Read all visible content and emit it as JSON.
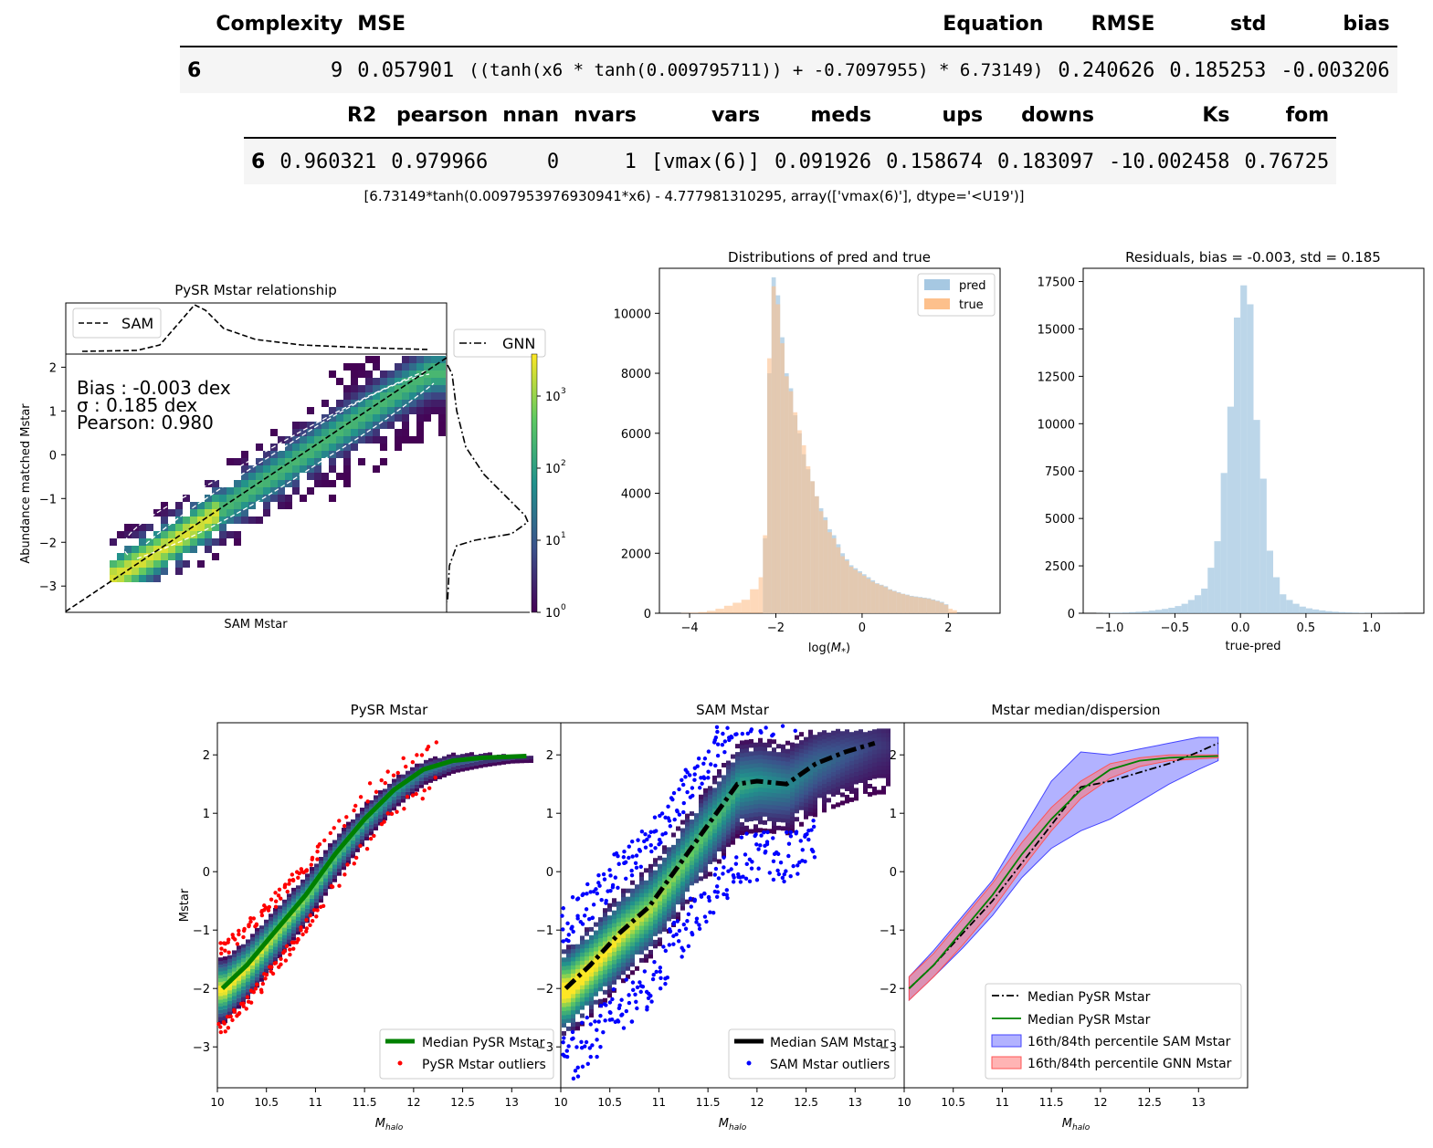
{
  "table1": {
    "headers": [
      "Complexity",
      "MSE",
      "Equation",
      "RMSE",
      "std",
      "bias"
    ],
    "row": {
      "index": "6",
      "values": [
        "9",
        "0.057901",
        "((tanh(x6 * tanh(0.009795711)) + -0.7097955) * 6.73149)",
        "0.240626",
        "0.185253",
        "-0.003206"
      ]
    }
  },
  "table2": {
    "headers": [
      "R2",
      "pearson",
      "nnan",
      "nvars",
      "vars",
      "meds",
      "ups",
      "downs",
      "Ks",
      "fom"
    ],
    "row": {
      "index": "6",
      "values": [
        "0.960321",
        "0.979966",
        "0",
        "1",
        "[vmax(6)]",
        "0.091926",
        "0.158674",
        "0.183097",
        "-10.002458",
        "0.76725"
      ]
    }
  },
  "result_line": "[6.73149*tanh(0.0097953976930941*x6) - 4.777981310295, array(['vmax(6)'], dtype='<U19')]",
  "colors": {
    "viridis_low": "#440154",
    "viridis_mid": "#21918c",
    "viridis_high": "#fde725",
    "pred": "#a6c8e2",
    "true": "#fdc08c",
    "residual": "#a6c8e2",
    "pysr_median": "#008000",
    "pysr_outlier": "#ff0000",
    "sam_outlier": "#0000ff",
    "sam_band": "#6666ff",
    "gnn_band": "#ff7777"
  },
  "chart_data": [
    {
      "type": "heatmap",
      "title": "PySR Mstar relationship",
      "xlabel": "SAM Mstar",
      "ylabel": "Abundance matched Mstar",
      "ylim": [
        -3.6,
        2.3
      ],
      "yticks": [
        "2",
        "1",
        "0",
        "−1",
        "−2",
        "−3"
      ],
      "annotations": [
        "Bias : -0.003 dex",
        "σ : 0.185 dex",
        "Pearson:  0.980"
      ],
      "marginal_top_legend": "SAM",
      "marginal_right_legend": "GNN",
      "colorbar": {
        "scale": "log",
        "ticks": [
          "10",
          "10",
          "10",
          "10"
        ],
        "exponents": [
          "0",
          "1",
          "2",
          "3"
        ],
        "range": [
          1,
          3000
        ]
      },
      "ridge_x": [
        -2.8,
        -2.5,
        -2,
        -1.5,
        -1,
        -0.5,
        0,
        0.5,
        1,
        1.5,
        2
      ],
      "ridge_y": [
        -2.7,
        -2.45,
        -2.0,
        -1.5,
        -1.0,
        -0.5,
        0.0,
        0.5,
        1.0,
        1.5,
        1.95
      ]
    },
    {
      "type": "bar",
      "title": "Distributions of pred and true",
      "xlabel": "log(M*)",
      "xlim": [
        -4.7,
        3.2
      ],
      "ylim": [
        0,
        11500
      ],
      "xticks": [
        -4,
        -2,
        0,
        2
      ],
      "yticks": [
        0,
        2000,
        4000,
        6000,
        8000,
        10000
      ],
      "bin_edges": [
        -4.2,
        -4.0,
        -3.8,
        -3.6,
        -3.4,
        -3.2,
        -3.0,
        -2.8,
        -2.6,
        -2.4,
        -2.3,
        -2.2,
        -2.1,
        -2.0,
        -1.9,
        -1.8,
        -1.7,
        -1.6,
        -1.5,
        -1.4,
        -1.3,
        -1.2,
        -1.1,
        -1.0,
        -0.9,
        -0.8,
        -0.7,
        -0.6,
        -0.5,
        -0.4,
        -0.3,
        -0.2,
        -0.1,
        0.0,
        0.1,
        0.2,
        0.3,
        0.4,
        0.5,
        0.6,
        0.7,
        0.8,
        0.9,
        1.0,
        1.1,
        1.2,
        1.3,
        1.4,
        1.5,
        1.6,
        1.7,
        1.8,
        1.9,
        2.0,
        2.1,
        2.2,
        2.4
      ],
      "series": [
        {
          "name": "pred",
          "values": [
            0,
            0,
            0,
            0,
            0,
            0,
            0,
            0,
            0,
            0,
            2500,
            8000,
            11200,
            10600,
            9200,
            8000,
            7500,
            6600,
            6000,
            5300,
            4800,
            4400,
            3900,
            3500,
            3200,
            2800,
            2600,
            2300,
            2000,
            1800,
            1600,
            1500,
            1400,
            1300,
            1200,
            1100,
            1000,
            950,
            900,
            800,
            750,
            700,
            650,
            620,
            580,
            560,
            540,
            520,
            500,
            460,
            420,
            380,
            300,
            0,
            0,
            0
          ]
        },
        {
          "name": "true",
          "values": [
            10,
            20,
            40,
            80,
            150,
            250,
            350,
            450,
            800,
            1200,
            2600,
            8500,
            10900,
            10300,
            9000,
            7900,
            7400,
            6700,
            6100,
            5600,
            4900,
            4400,
            3900,
            3400,
            3100,
            2700,
            2500,
            2200,
            1900,
            1750,
            1550,
            1450,
            1350,
            1250,
            1150,
            1050,
            980,
            930,
            870,
            780,
            730,
            680,
            640,
            600,
            560,
            540,
            520,
            500,
            480,
            440,
            400,
            350,
            280,
            150,
            100,
            0
          ]
        }
      ]
    },
    {
      "type": "bar",
      "title": "Residuals, bias = -0.003, std = 0.185",
      "xlabel": "true-pred",
      "xlim": [
        -1.2,
        1.4
      ],
      "ylim": [
        0,
        18200
      ],
      "xticks": [
        -1.0,
        -0.5,
        0.0,
        0.5,
        1.0
      ],
      "yticks": [
        0,
        2500,
        5000,
        7500,
        10000,
        12500,
        15000,
        17500
      ],
      "bin_edges": [
        -1.1,
        -1.05,
        -1.0,
        -0.95,
        -0.9,
        -0.85,
        -0.8,
        -0.75,
        -0.7,
        -0.65,
        -0.6,
        -0.55,
        -0.5,
        -0.45,
        -0.4,
        -0.35,
        -0.3,
        -0.25,
        -0.2,
        -0.15,
        -0.1,
        -0.05,
        0.0,
        0.05,
        0.1,
        0.15,
        0.2,
        0.25,
        0.3,
        0.35,
        0.4,
        0.45,
        0.5,
        0.55,
        0.6,
        0.65,
        0.7,
        0.75,
        0.8,
        0.85,
        0.9,
        0.95,
        1.0,
        1.05,
        1.1,
        1.15,
        1.2,
        1.25
      ],
      "values": [
        10,
        15,
        25,
        30,
        40,
        60,
        80,
        100,
        140,
        180,
        230,
        290,
        380,
        500,
        700,
        950,
        1300,
        2400,
        3800,
        7400,
        10900,
        15600,
        17300,
        16300,
        10200,
        7100,
        3300,
        1900,
        1000,
        700,
        500,
        350,
        260,
        200,
        150,
        110,
        80,
        60,
        45,
        35,
        25,
        20,
        15,
        12,
        10,
        8,
        5
      ]
    },
    {
      "type": "heatmap",
      "title": "PySR Mstar",
      "xlabel": "M_halo",
      "ylabel": "Mstar",
      "xlim": [
        10,
        13.5
      ],
      "ylim": [
        -3.7,
        2.55
      ],
      "xticks": [
        "10",
        "10.5",
        "11",
        "11.5",
        "12",
        "12.5",
        "13"
      ],
      "yticks": [
        2,
        1,
        0,
        -1,
        -2,
        -3
      ],
      "median_x": [
        10.05,
        10.3,
        10.6,
        10.9,
        11.2,
        11.5,
        11.8,
        12.1,
        12.4,
        12.7,
        13.0,
        13.15
      ],
      "median_y": [
        -2.0,
        -1.6,
        -1.0,
        -0.4,
        0.3,
        0.9,
        1.4,
        1.75,
        1.9,
        1.95,
        1.97,
        1.98
      ],
      "legend": [
        "Median PySR Mstar",
        "PySR Mstar outliers"
      ]
    },
    {
      "type": "heatmap",
      "title": "SAM Mstar",
      "xlabel": "M_halo",
      "xlim": [
        10,
        13.5
      ],
      "ylim": [
        -3.7,
        2.55
      ],
      "xticks": [
        "10",
        "10.5",
        "11",
        "11.5",
        "12",
        "12.5",
        "13"
      ],
      "yticks": [
        2,
        1,
        0,
        -1,
        -2,
        -3
      ],
      "median_x": [
        10.05,
        10.3,
        10.6,
        10.9,
        11.2,
        11.5,
        11.8,
        12.0,
        12.3,
        12.6,
        12.9,
        13.2
      ],
      "median_y": [
        -2.0,
        -1.6,
        -1.05,
        -0.6,
        0.1,
        0.8,
        1.5,
        1.55,
        1.5,
        1.85,
        2.05,
        2.2
      ],
      "legend": [
        "Median SAM Mstar",
        "SAM Mstar outliers"
      ]
    },
    {
      "type": "line",
      "title": "Mstar median/dispersion",
      "xlabel": "M_halo",
      "xlim": [
        10,
        13.5
      ],
      "ylim": [
        -3.7,
        2.55
      ],
      "xticks": [
        "10",
        "10.5",
        "11",
        "11.5",
        "12",
        "12.5",
        "13"
      ],
      "yticks": [
        2,
        1,
        0,
        -1,
        -2,
        -3
      ],
      "x": [
        10.05,
        10.3,
        10.6,
        10.9,
        11.2,
        11.5,
        11.8,
        12.1,
        12.4,
        12.7,
        13.0,
        13.2
      ],
      "series": [
        {
          "name": "Median PySR Mstar",
          "style": "dashdot",
          "values": [
            -2.0,
            -1.6,
            -1.05,
            -0.5,
            0.15,
            0.8,
            1.45,
            1.55,
            1.7,
            1.85,
            2.05,
            2.2
          ]
        },
        {
          "name": "Median PySR Mstar",
          "style": "solid",
          "values": [
            -2.0,
            -1.6,
            -1.0,
            -0.4,
            0.3,
            0.9,
            1.4,
            1.75,
            1.9,
            1.95,
            1.97,
            1.98
          ]
        },
        {
          "name": "16th/84th percentile SAM Mstar",
          "lower": [
            -2.2,
            -1.8,
            -1.3,
            -0.75,
            -0.1,
            0.4,
            0.7,
            0.9,
            1.2,
            1.5,
            1.75,
            1.9
          ],
          "upper": [
            -1.8,
            -1.35,
            -0.75,
            -0.15,
            0.7,
            1.55,
            2.05,
            2.0,
            2.1,
            2.2,
            2.3,
            2.3
          ]
        },
        {
          "name": "16th/84th percentile GNN Mstar",
          "lower": [
            -2.2,
            -1.8,
            -1.25,
            -0.65,
            0.05,
            0.7,
            1.25,
            1.6,
            1.8,
            1.9,
            1.93,
            1.95
          ],
          "upper": [
            -1.8,
            -1.4,
            -0.8,
            -0.2,
            0.5,
            1.1,
            1.55,
            1.85,
            1.95,
            2.0,
            2.0,
            2.0
          ]
        }
      ]
    }
  ]
}
